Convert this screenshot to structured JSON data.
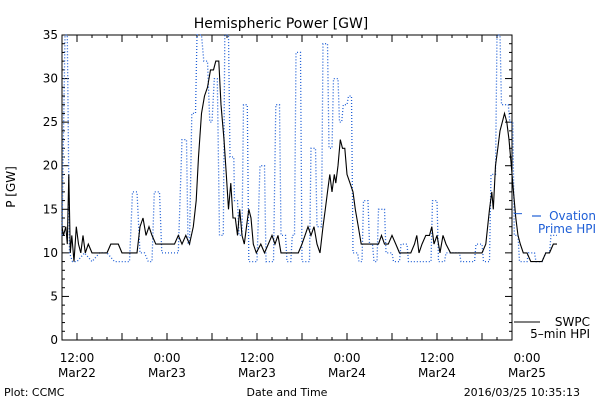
{
  "chart_data": {
    "type": "line",
    "title": "Hemispheric Power [GW]",
    "ylabel": "P [GW]",
    "xlabel": "Date and Time",
    "ylim": [
      0,
      35
    ],
    "y_ticks": [
      0,
      5,
      10,
      15,
      20,
      25,
      30,
      35
    ],
    "xlim_hours": [
      -2,
      58
    ],
    "x_ticks": [
      {
        "hour": 0,
        "time": "12:00",
        "date": "Mar22"
      },
      {
        "hour": 12,
        "time": "0:00",
        "date": "Mar23"
      },
      {
        "hour": 24,
        "time": "12:00",
        "date": "Mar23"
      },
      {
        "hour": 36,
        "time": "0:00",
        "date": "Mar24"
      },
      {
        "hour": 48,
        "time": "12:00",
        "date": "Mar24"
      },
      {
        "hour": 60,
        "time": "0:00",
        "date": "Mar25"
      }
    ],
    "grid": false,
    "legend_position": "right",
    "series": [
      {
        "name": "Ovation Prime HPI",
        "label_line1": "Ovation",
        "label_line2": "Prime HPI",
        "color": "#1f5fd6",
        "style": "dotted",
        "points": [
          [
            -2.0,
            12
          ],
          [
            -1.6,
            35
          ],
          [
            -1.3,
            35
          ],
          [
            -1.0,
            10
          ],
          [
            -0.6,
            9
          ],
          [
            0,
            9
          ],
          [
            1.0,
            10
          ],
          [
            2.0,
            9
          ],
          [
            3.0,
            10
          ],
          [
            4.0,
            10
          ],
          [
            5.0,
            9
          ],
          [
            7.0,
            9
          ],
          [
            7.4,
            17
          ],
          [
            8.0,
            17
          ],
          [
            8.4,
            10
          ],
          [
            9.0,
            10
          ],
          [
            9.5,
            9
          ],
          [
            10.0,
            9
          ],
          [
            10.3,
            17
          ],
          [
            11.0,
            17
          ],
          [
            11.3,
            10
          ],
          [
            12.0,
            10
          ],
          [
            13.5,
            10
          ],
          [
            14.0,
            23
          ],
          [
            14.6,
            23
          ],
          [
            14.8,
            11
          ],
          [
            15.0,
            11
          ],
          [
            15.3,
            26
          ],
          [
            15.8,
            26
          ],
          [
            16.0,
            35
          ],
          [
            16.6,
            35
          ],
          [
            16.9,
            32
          ],
          [
            17.4,
            32
          ],
          [
            17.7,
            25
          ],
          [
            18.0,
            25
          ],
          [
            18.3,
            30
          ],
          [
            18.7,
            30
          ],
          [
            19.0,
            12
          ],
          [
            19.5,
            12
          ],
          [
            19.7,
            35
          ],
          [
            20.2,
            35
          ],
          [
            20.4,
            21
          ],
          [
            20.9,
            21
          ],
          [
            21.0,
            16
          ],
          [
            21.4,
            16
          ],
          [
            21.6,
            12
          ],
          [
            22.0,
            12
          ],
          [
            22.2,
            27
          ],
          [
            22.7,
            27
          ],
          [
            22.9,
            9
          ],
          [
            24.0,
            9
          ],
          [
            24.4,
            20
          ],
          [
            25.0,
            20
          ],
          [
            25.2,
            9
          ],
          [
            26.2,
            9
          ],
          [
            26.5,
            27
          ],
          [
            27.0,
            27
          ],
          [
            27.2,
            12
          ],
          [
            27.8,
            12
          ],
          [
            28.0,
            9
          ],
          [
            28.5,
            9
          ],
          [
            28.7,
            12
          ],
          [
            29.0,
            12
          ],
          [
            29.2,
            33
          ],
          [
            29.8,
            33
          ],
          [
            30.0,
            9
          ],
          [
            31.0,
            9
          ],
          [
            31.2,
            22
          ],
          [
            31.8,
            22
          ],
          [
            32.0,
            13
          ],
          [
            32.6,
            13
          ],
          [
            32.8,
            34
          ],
          [
            33.4,
            34
          ],
          [
            33.6,
            22
          ],
          [
            34.0,
            22
          ],
          [
            34.2,
            30
          ],
          [
            34.8,
            30
          ],
          [
            35.0,
            25
          ],
          [
            35.3,
            25
          ],
          [
            35.5,
            27
          ],
          [
            36.0,
            27
          ],
          [
            36.2,
            28
          ],
          [
            36.6,
            28
          ],
          [
            36.8,
            10
          ],
          [
            37.4,
            10
          ],
          [
            37.6,
            9
          ],
          [
            38.0,
            9
          ],
          [
            38.2,
            16
          ],
          [
            38.8,
            16
          ],
          [
            39.0,
            11
          ],
          [
            39.4,
            11
          ],
          [
            39.6,
            9
          ],
          [
            40.0,
            9
          ],
          [
            40.2,
            15
          ],
          [
            41.0,
            15
          ],
          [
            41.2,
            10
          ],
          [
            42.0,
            10
          ],
          [
            42.2,
            9
          ],
          [
            43.0,
            9
          ],
          [
            43.2,
            11
          ],
          [
            44.0,
            11
          ],
          [
            44.2,
            9
          ],
          [
            47.2,
            9
          ],
          [
            47.4,
            16
          ],
          [
            48.0,
            16
          ],
          [
            48.2,
            9
          ],
          [
            49.0,
            9
          ],
          [
            49.2,
            10
          ],
          [
            51.0,
            10
          ],
          [
            51.2,
            9
          ],
          [
            53.0,
            9
          ],
          [
            53.2,
            11
          ],
          [
            54.0,
            11
          ],
          [
            54.2,
            9
          ],
          [
            55.0,
            9
          ],
          [
            55.2,
            19
          ],
          [
            55.8,
            19
          ],
          [
            56.0,
            35
          ],
          [
            56.4,
            35
          ],
          [
            56.6,
            27
          ],
          [
            57.5,
            27
          ],
          [
            57.7,
            25
          ],
          [
            58.1,
            25
          ],
          [
            58.3,
            12
          ],
          [
            58.8,
            12
          ],
          [
            59.0,
            9
          ],
          [
            60.0,
            9
          ],
          [
            60.2,
            10
          ],
          [
            61.0,
            10
          ],
          [
            61.2,
            9
          ],
          [
            62.0,
            9
          ],
          [
            62.5,
            10
          ],
          [
            63.0,
            10
          ],
          [
            63.2,
            12
          ],
          [
            64.0,
            12
          ]
        ]
      },
      {
        "name": "SWPC 5-min HPI",
        "label_line1": "SWPC",
        "label_line2": "5–min HPI",
        "color": "#000000",
        "style": "solid",
        "points": [
          [
            -2.0,
            13
          ],
          [
            -1.8,
            12
          ],
          [
            -1.5,
            13
          ],
          [
            -1.3,
            11
          ],
          [
            -1.1,
            19
          ],
          [
            -0.9,
            10
          ],
          [
            -0.7,
            12
          ],
          [
            -0.4,
            9
          ],
          [
            -0.1,
            13
          ],
          [
            0.2,
            11
          ],
          [
            0.5,
            10
          ],
          [
            0.8,
            12
          ],
          [
            1.1,
            10
          ],
          [
            1.5,
            11
          ],
          [
            2.0,
            10
          ],
          [
            4.0,
            10
          ],
          [
            4.5,
            11
          ],
          [
            5.5,
            11
          ],
          [
            6.0,
            10
          ],
          [
            8.0,
            10
          ],
          [
            8.4,
            13
          ],
          [
            8.8,
            14
          ],
          [
            9.2,
            12
          ],
          [
            9.6,
            13
          ],
          [
            10.0,
            12
          ],
          [
            10.5,
            11
          ],
          [
            12.0,
            11
          ],
          [
            13.0,
            11
          ],
          [
            13.5,
            12
          ],
          [
            14.0,
            11
          ],
          [
            14.5,
            12
          ],
          [
            15.0,
            11
          ],
          [
            15.5,
            13
          ],
          [
            15.9,
            16
          ],
          [
            16.2,
            21
          ],
          [
            16.6,
            26
          ],
          [
            17.0,
            28
          ],
          [
            17.4,
            29
          ],
          [
            17.8,
            31
          ],
          [
            18.2,
            31
          ],
          [
            18.5,
            32
          ],
          [
            18.9,
            32
          ],
          [
            19.2,
            27
          ],
          [
            19.6,
            23
          ],
          [
            19.9,
            19
          ],
          [
            20.2,
            15
          ],
          [
            20.5,
            18
          ],
          [
            20.8,
            14
          ],
          [
            21.1,
            14
          ],
          [
            21.4,
            12
          ],
          [
            21.7,
            15
          ],
          [
            22.0,
            12
          ],
          [
            22.3,
            11
          ],
          [
            22.6,
            13
          ],
          [
            22.9,
            15
          ],
          [
            23.2,
            14
          ],
          [
            23.5,
            11
          ],
          [
            23.9,
            10
          ],
          [
            24.5,
            11
          ],
          [
            25.0,
            10
          ],
          [
            25.5,
            11
          ],
          [
            26.0,
            12
          ],
          [
            26.4,
            11
          ],
          [
            26.8,
            12
          ],
          [
            27.2,
            10
          ],
          [
            27.6,
            10
          ],
          [
            28.2,
            10
          ],
          [
            29.0,
            10
          ],
          [
            29.5,
            10
          ],
          [
            30.0,
            11
          ],
          [
            30.4,
            12
          ],
          [
            30.8,
            13
          ],
          [
            31.2,
            12
          ],
          [
            31.6,
            13
          ],
          [
            32.0,
            11
          ],
          [
            32.4,
            10
          ],
          [
            32.8,
            13
          ],
          [
            33.1,
            15
          ],
          [
            33.4,
            17
          ],
          [
            33.7,
            19
          ],
          [
            34.0,
            17
          ],
          [
            34.3,
            19
          ],
          [
            34.5,
            18
          ],
          [
            34.8,
            20
          ],
          [
            35.1,
            23
          ],
          [
            35.4,
            22
          ],
          [
            35.7,
            22
          ],
          [
            36.0,
            19
          ],
          [
            36.4,
            18
          ],
          [
            36.8,
            17
          ],
          [
            37.1,
            15
          ],
          [
            37.5,
            13
          ],
          [
            37.9,
            11
          ],
          [
            38.5,
            11
          ],
          [
            39.5,
            11
          ],
          [
            40.2,
            11
          ],
          [
            40.6,
            12
          ],
          [
            41.0,
            11
          ],
          [
            41.5,
            11
          ],
          [
            42.0,
            12
          ],
          [
            42.5,
            11
          ],
          [
            43.0,
            10
          ],
          [
            44.5,
            10
          ],
          [
            45.0,
            11
          ],
          [
            45.3,
            12
          ],
          [
            45.6,
            10
          ],
          [
            46.0,
            11
          ],
          [
            46.5,
            12
          ],
          [
            47.0,
            12
          ],
          [
            47.3,
            13
          ],
          [
            47.6,
            11
          ],
          [
            48.0,
            12
          ],
          [
            48.4,
            10
          ],
          [
            48.8,
            12
          ],
          [
            49.2,
            11
          ],
          [
            49.8,
            10
          ],
          [
            51.0,
            10
          ],
          [
            52.0,
            10
          ],
          [
            53.0,
            10
          ],
          [
            54.0,
            10
          ],
          [
            54.5,
            11
          ],
          [
            55.0,
            15
          ],
          [
            55.3,
            17
          ],
          [
            55.5,
            15
          ],
          [
            55.8,
            20
          ],
          [
            56.1,
            22
          ],
          [
            56.4,
            24
          ],
          [
            56.7,
            25
          ],
          [
            57.0,
            26
          ],
          [
            57.3,
            25
          ],
          [
            57.6,
            23
          ],
          [
            57.9,
            20
          ],
          [
            58.2,
            17
          ],
          [
            58.5,
            14
          ],
          [
            58.8,
            12
          ],
          [
            59.1,
            11
          ],
          [
            59.5,
            10
          ],
          [
            60.0,
            10
          ],
          [
            60.5,
            9
          ],
          [
            62.0,
            9
          ],
          [
            62.5,
            10
          ],
          [
            63.0,
            10
          ],
          [
            63.5,
            11
          ],
          [
            64.0,
            11
          ]
        ]
      }
    ],
    "footer_left": "Plot: CCMC",
    "footer_right": "2016/03/25 10:35:13"
  }
}
